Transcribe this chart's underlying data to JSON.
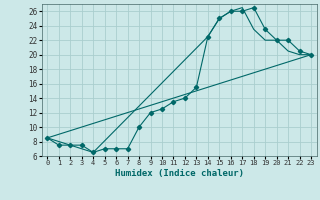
{
  "xlabel": "Humidex (Indice chaleur)",
  "background_color": "#cce8e8",
  "grid_color": "#aacece",
  "line_color": "#006868",
  "xlim": [
    -0.5,
    23.5
  ],
  "ylim": [
    6,
    27
  ],
  "xticks": [
    0,
    1,
    2,
    3,
    4,
    5,
    6,
    7,
    8,
    9,
    10,
    11,
    12,
    13,
    14,
    15,
    16,
    17,
    18,
    19,
    20,
    21,
    22,
    23
  ],
  "yticks": [
    6,
    8,
    10,
    12,
    14,
    16,
    18,
    20,
    22,
    24,
    26
  ],
  "curve1_x": [
    0,
    1,
    2,
    3,
    4,
    5,
    6,
    7,
    8,
    9,
    10,
    11,
    12,
    13,
    14,
    15,
    16,
    17,
    18,
    19,
    20,
    21,
    22,
    23
  ],
  "curve1_y": [
    8.5,
    7.5,
    7.5,
    7.5,
    6.5,
    7.0,
    7.0,
    7.0,
    10.0,
    12.0,
    12.5,
    13.5,
    14.0,
    15.5,
    22.5,
    25.0,
    26.0,
    26.0,
    26.5,
    23.5,
    22.0,
    22.0,
    20.5,
    20.0
  ],
  "curve2_x": [
    0,
    4,
    14,
    15,
    16,
    17,
    18,
    19,
    20,
    21,
    22,
    23
  ],
  "curve2_y": [
    8.5,
    6.5,
    22.5,
    25.0,
    26.0,
    26.5,
    23.5,
    22.0,
    22.0,
    20.5,
    20.0,
    20.0
  ],
  "curve3_x": [
    0,
    23
  ],
  "curve3_y": [
    8.5,
    20.0
  ]
}
